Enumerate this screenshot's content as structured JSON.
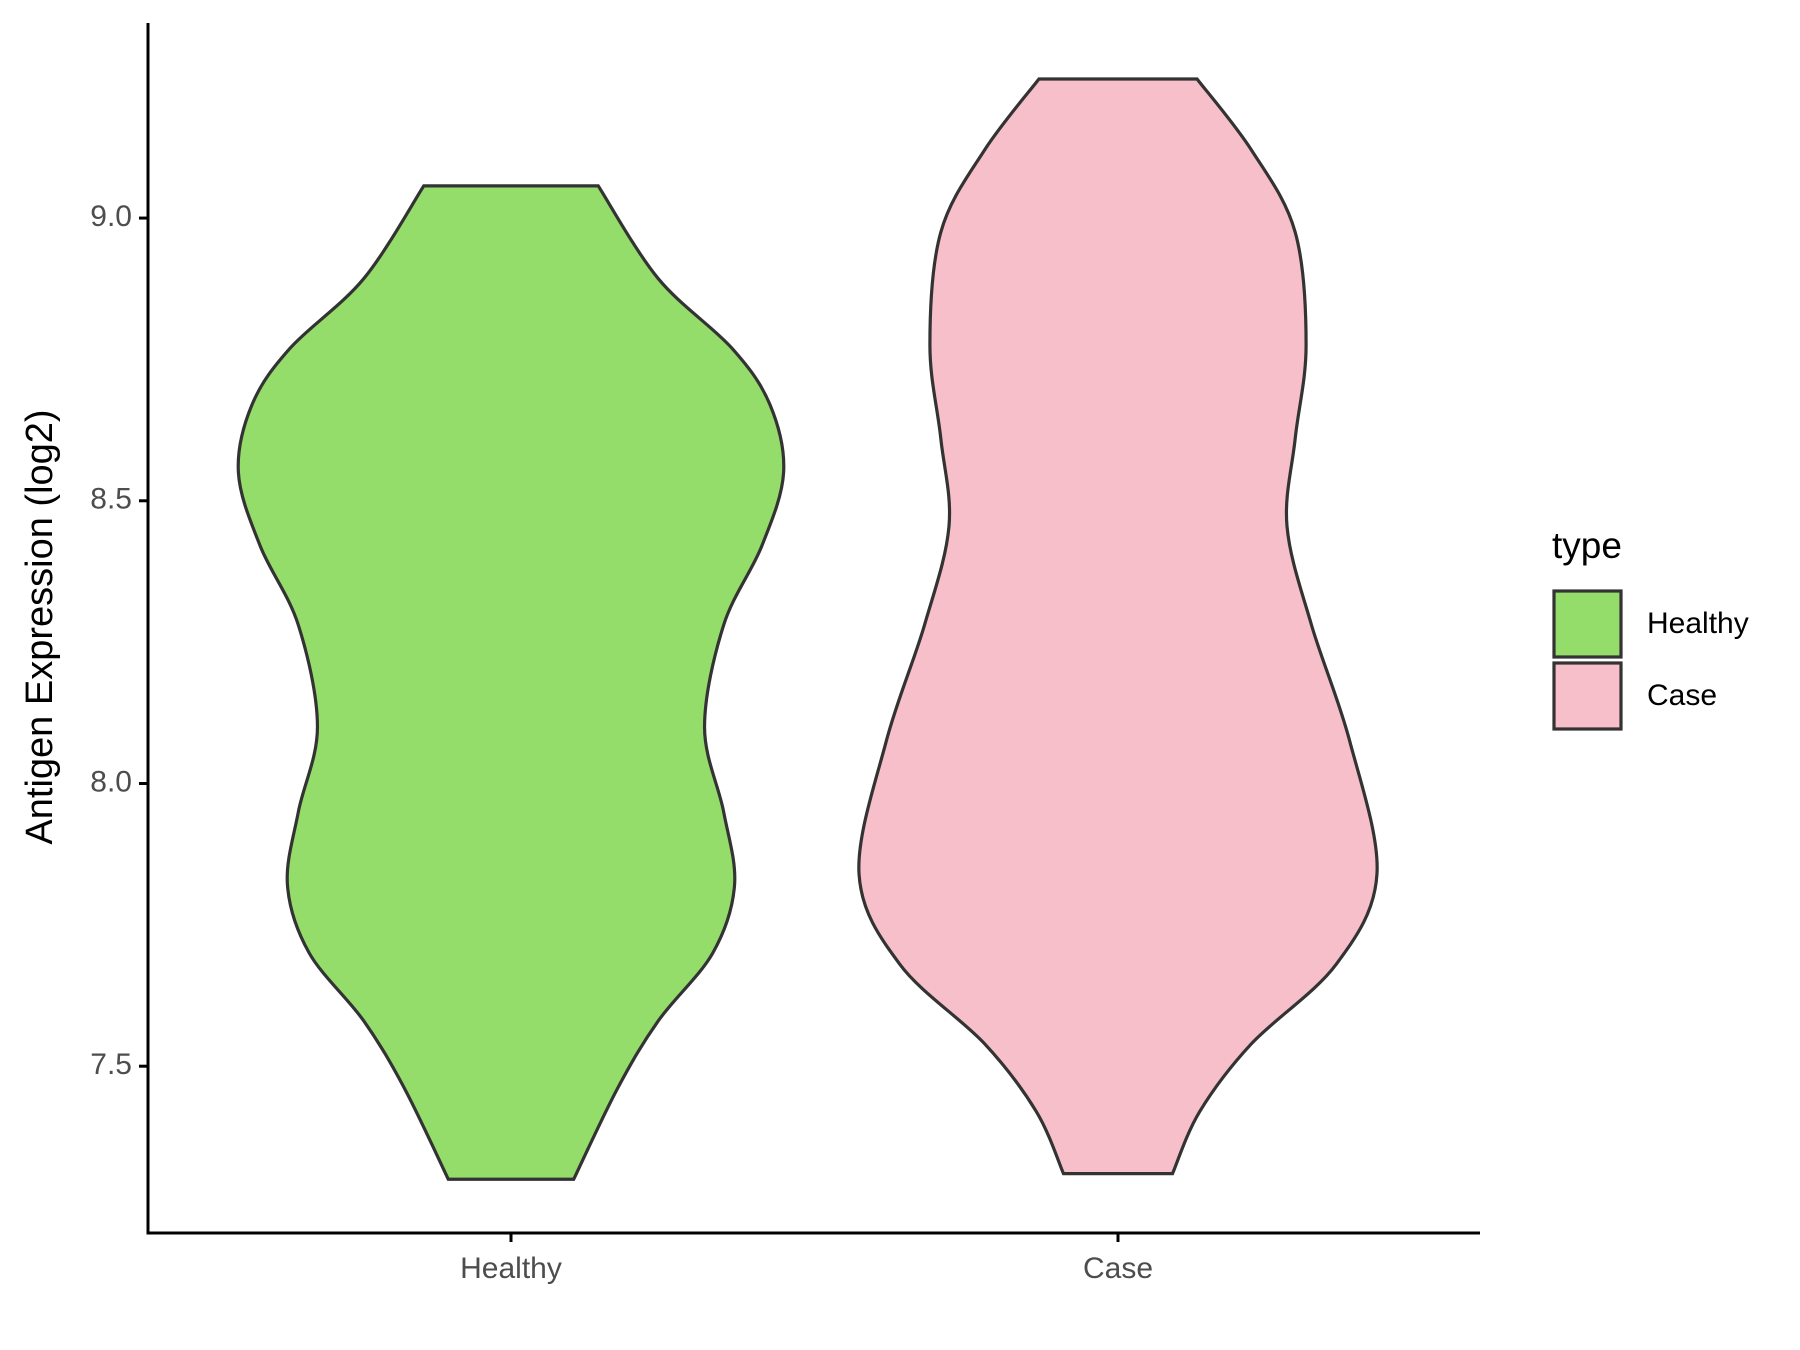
{
  "chart_data": {
    "type": "violin",
    "ylabel": "Antigen Expression (log2)",
    "categories": [
      "Healthy",
      "Case"
    ],
    "legend_title": "type",
    "legend_position": "right",
    "ylim": [
      7.205,
      9.345
    ],
    "yticks": [
      7.5,
      {
        "value": 8,
        "label": "8.0"
      },
      8.5,
      {
        "value": 9,
        "label": "9.0"
      }
    ],
    "series": [
      {
        "name": "Healthy",
        "color": "#95dd6b",
        "y": [
          9.057,
          8.893,
          8.77,
          8.67,
          8.55,
          8.42,
          8.28,
          8.1,
          7.95,
          7.82,
          7.7,
          7.58,
          7.46,
          7.3
        ],
        "density": [
          0.32,
          0.54,
          0.81,
          0.95,
          1.0,
          0.92,
          0.78,
          0.71,
          0.78,
          0.82,
          0.74,
          0.54,
          0.39,
          0.23
        ]
      },
      {
        "name": "Case",
        "color": "#f7bfca",
        "y": [
          9.246,
          9.12,
          8.975,
          8.775,
          8.61,
          8.455,
          8.28,
          8.075,
          7.84,
          7.68,
          7.54,
          7.42,
          7.31
        ],
        "density": [
          0.29,
          0.49,
          0.65,
          0.69,
          0.65,
          0.62,
          0.71,
          0.85,
          0.95,
          0.8,
          0.49,
          0.3,
          0.2
        ]
      }
    ]
  }
}
